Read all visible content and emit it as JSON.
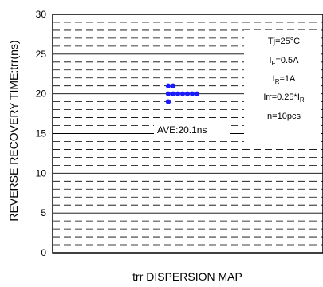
{
  "chart_data": {
    "type": "scatter",
    "title": "",
    "xlabel": "trr DISPERSION MAP",
    "ylabel": "REVERSE RECOVERY TIME:trr(ns)",
    "ylim": [
      0,
      30
    ],
    "yticks": [
      "0",
      "5",
      "10",
      "15",
      "20",
      "25",
      "30"
    ],
    "grid": {
      "major_step": 5,
      "minor_step": 1,
      "major_style": "solid",
      "minor_style": "dashed"
    },
    "point_color": "#1a1aff",
    "points": [
      {
        "col": 0,
        "y": 21
      },
      {
        "col": 0,
        "y": 20
      },
      {
        "col": 0,
        "y": 19
      },
      {
        "col": 1,
        "y": 21
      },
      {
        "col": 1,
        "y": 20
      },
      {
        "col": 2,
        "y": 20
      },
      {
        "col": 3,
        "y": 20
      },
      {
        "col": 4,
        "y": 20
      },
      {
        "col": 5,
        "y": 20
      },
      {
        "col": 6,
        "y": 20
      }
    ],
    "annotations": {
      "conditions": [
        {
          "main": "Tj=25°C",
          "sub": "",
          "tail": ""
        },
        {
          "main": "I",
          "sub": "F",
          "tail": "=0.5A"
        },
        {
          "main": "I",
          "sub": "R",
          "tail": "=1A"
        },
        {
          "main": "Irr=0.25*I",
          "sub": "R",
          "tail": ""
        },
        {
          "main": "n=10pcs",
          "sub": "",
          "tail": ""
        }
      ],
      "average": "AVE:20.1ns"
    }
  }
}
